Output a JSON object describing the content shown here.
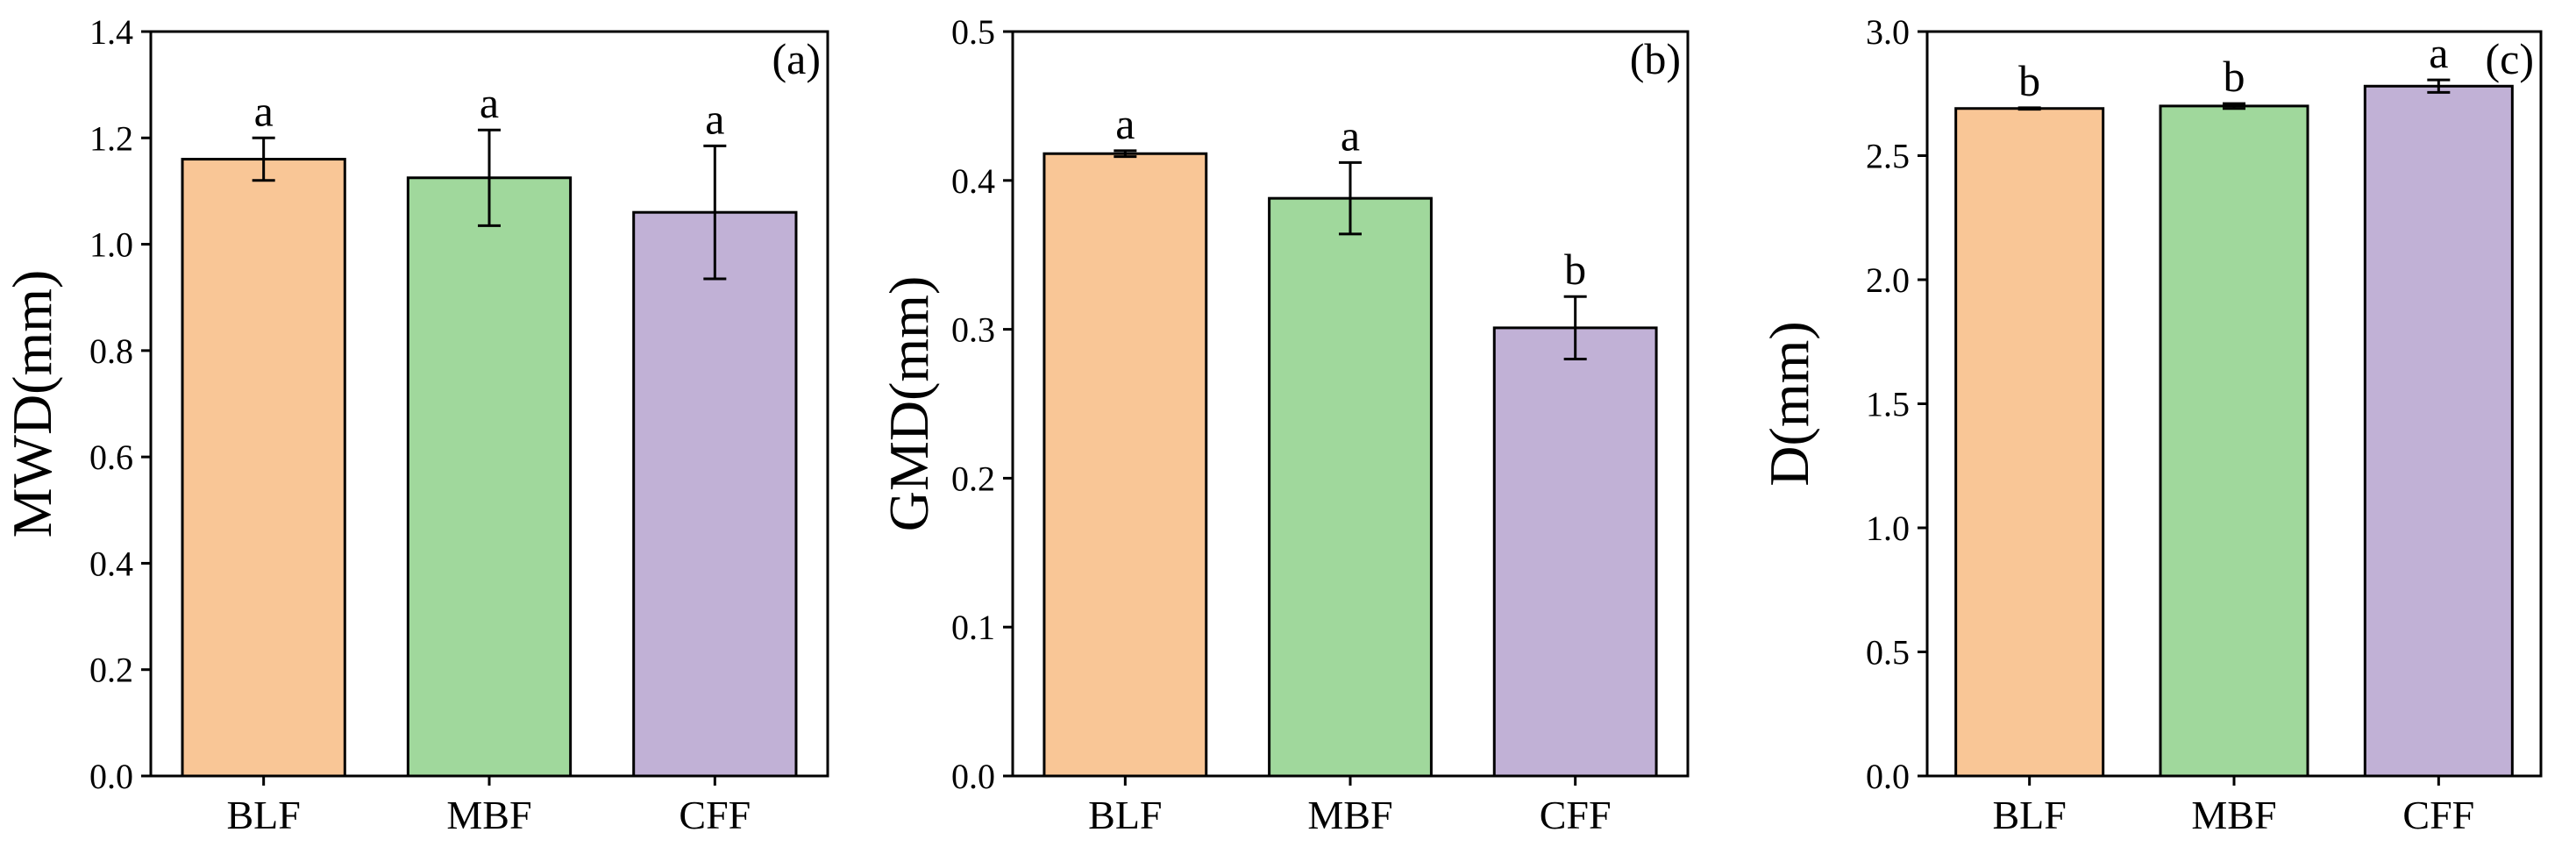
{
  "figure": {
    "description_panels": 3
  },
  "colors": {
    "BLF": "#F9C696",
    "MBF": "#A0D89C",
    "CFF": "#C1B1D6",
    "axis": "#000000"
  },
  "chart_data": [
    {
      "type": "bar",
      "panel_label": "(a)",
      "title": "",
      "xlabel": "",
      "ylabel": "MWD(mm)",
      "ylim": [
        0.0,
        1.4
      ],
      "yticks": [
        "0.0",
        "0.2",
        "0.4",
        "0.6",
        "0.8",
        "1.0",
        "1.2",
        "1.4"
      ],
      "categories": [
        "BLF",
        "MBF",
        "CFF"
      ],
      "values": [
        1.16,
        1.125,
        1.06
      ],
      "errors": [
        0.04,
        0.09,
        0.125
      ],
      "significance": [
        "a",
        "a",
        "a"
      ]
    },
    {
      "type": "bar",
      "panel_label": "(b)",
      "title": "",
      "xlabel": "",
      "ylabel": "GMD(mm)",
      "ylim": [
        0.0,
        0.5
      ],
      "yticks": [
        "0.0",
        "0.1",
        "0.2",
        "0.3",
        "0.4",
        "0.5"
      ],
      "categories": [
        "BLF",
        "MBF",
        "CFF"
      ],
      "values": [
        0.418,
        0.388,
        0.301
      ],
      "errors": [
        0.002,
        0.024,
        0.021
      ],
      "significance": [
        "a",
        "a",
        "b"
      ]
    },
    {
      "type": "bar",
      "panel_label": "(c)",
      "title": "",
      "xlabel": "",
      "ylabel": "D(mm)",
      "ylim": [
        0.0,
        3.0
      ],
      "yticks": [
        "0.0",
        "0.5",
        "1.0",
        "1.5",
        "2.0",
        "2.5",
        "3.0"
      ],
      "categories": [
        "BLF",
        "MBF",
        "CFF"
      ],
      "values": [
        2.69,
        2.7,
        2.78
      ],
      "errors": [
        0.003,
        0.01,
        0.025
      ],
      "significance": [
        "b",
        "b",
        "a"
      ]
    }
  ]
}
